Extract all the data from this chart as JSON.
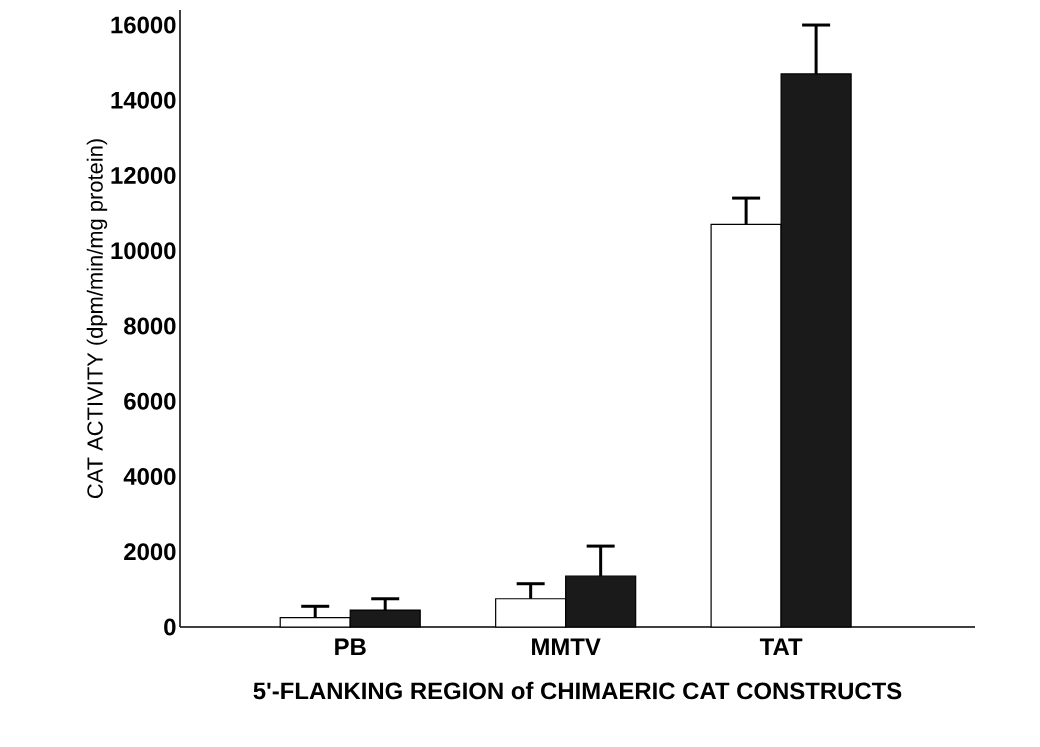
{
  "chart_data": {
    "type": "bar",
    "xlabel": "5'-FLANKING REGION of CHIMAERIC CAT CONSTRUCTS",
    "ylabel": "CAT ACTIVITY (dpm/min/mg protein)",
    "categories": [
      "PB",
      "MMTV",
      "TAT"
    ],
    "series": [
      {
        "color": "#ffffff",
        "values": [
          250,
          750,
          10700
        ],
        "errors": [
          [
            250,
            550
          ],
          [
            750,
            1150
          ],
          [
            10700,
            11400
          ]
        ]
      },
      {
        "color": "#1a1a1a",
        "values": [
          450,
          1350,
          14700
        ],
        "errors": [
          [
            450,
            750
          ],
          [
            1350,
            2150
          ],
          [
            14700,
            16000
          ]
        ]
      }
    ],
    "ylim": [
      0,
      16400
    ],
    "yticks": [
      0,
      2000,
      4000,
      6000,
      8000,
      10000,
      12000,
      14000,
      16000
    ],
    "grid": false
  }
}
